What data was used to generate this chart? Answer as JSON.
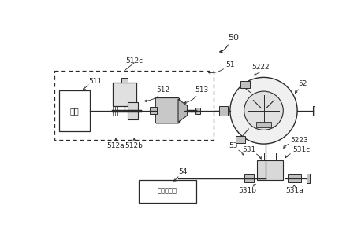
{
  "background_color": "#ffffff",
  "water_source_label": "水源",
  "filter_label": "注入过滤部",
  "fig_width": 4.44,
  "fig_height": 3.13,
  "dpi": 100,
  "dark": "#2a2a2a",
  "label_50": "50",
  "label_51": "51",
  "label_511": "511",
  "label_512": "512",
  "label_512c": "512c",
  "label_512a": "512a",
  "label_512b": "512b",
  "label_513": "513",
  "label_52": "52",
  "label_5222": "5222",
  "label_5223": "5223",
  "label_531c": "531c",
  "label_53": "53",
  "label_531": "531",
  "label_54": "54",
  "label_531b": "531b",
  "label_531a": "531a"
}
